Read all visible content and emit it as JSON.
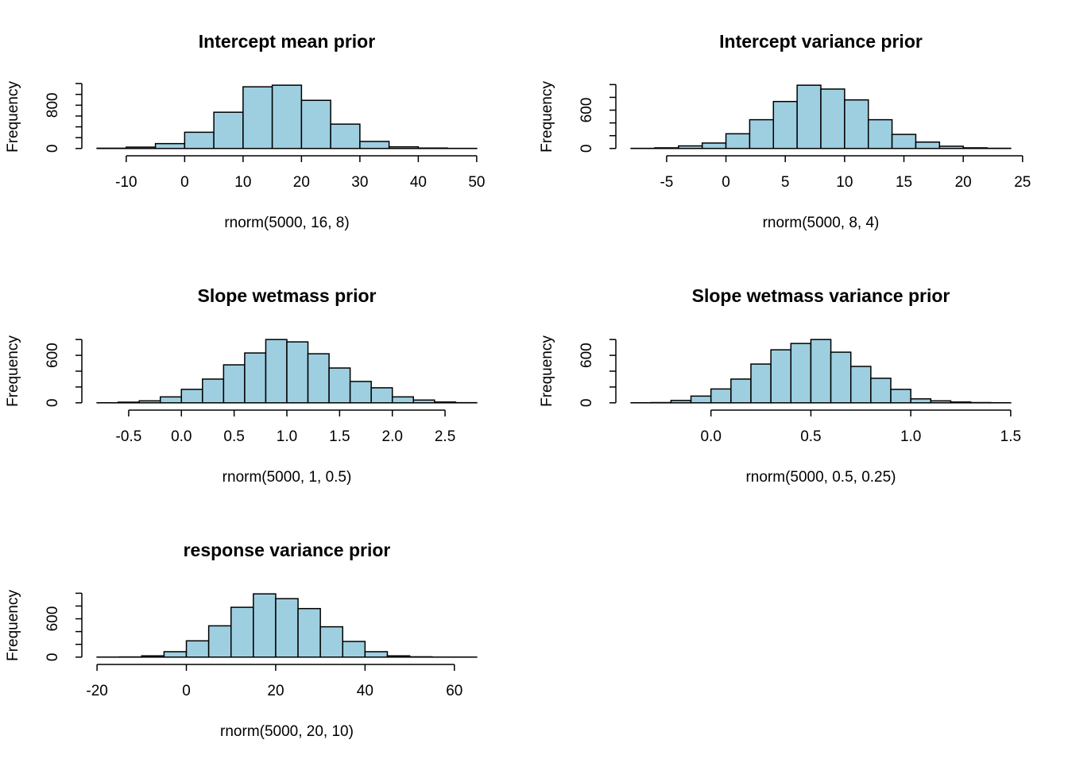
{
  "chart_data": [
    {
      "type": "histogram",
      "title": "Intercept mean prior",
      "xlabel": "rnorm(5000, 16, 8)",
      "ylabel": "Frequency",
      "color": "#9ecfe1",
      "bins": [
        -15,
        -10,
        -5,
        0,
        5,
        10,
        15,
        20,
        25,
        30,
        35,
        40,
        45,
        50
      ],
      "values": [
        5,
        25,
        90,
        300,
        670,
        1140,
        1170,
        890,
        450,
        130,
        30,
        8,
        2
      ],
      "xlim": [
        -17.6,
        52.6
      ],
      "ylim": [
        -47,
        1217
      ],
      "xticks": [
        -10,
        0,
        10,
        20,
        30,
        40,
        50
      ],
      "yticks": [
        0,
        800
      ],
      "ytick_marks": [
        0,
        200,
        400,
        600,
        800,
        1000,
        1200
      ]
    },
    {
      "type": "histogram",
      "title": "Intercept variance prior",
      "xlabel": "rnorm(5000, 8, 4)",
      "ylabel": "Frequency",
      "color": "#9ecfe1",
      "bins": [
        -8,
        -6,
        -4,
        -2,
        0,
        2,
        4,
        6,
        8,
        10,
        12,
        14,
        16,
        18,
        20,
        22,
        24
      ],
      "values": [
        2,
        10,
        40,
        85,
        230,
        450,
        735,
        990,
        930,
        760,
        450,
        220,
        100,
        35,
        10,
        3
      ],
      "xlim": [
        -9.28,
        25.28
      ],
      "ylim": [
        -40,
        1030
      ],
      "xticks": [
        -5,
        0,
        5,
        10,
        15,
        20,
        25
      ],
      "yticks": [
        0,
        600
      ],
      "ytick_marks": [
        0,
        200,
        400,
        600,
        800,
        1000
      ]
    },
    {
      "type": "histogram",
      "title": "Slope wetmass prior",
      "xlabel": "rnorm(5000, 1, 0.5)",
      "ylabel": "Frequency",
      "color": "#9ecfe1",
      "bins": [
        -0.8,
        -0.6,
        -0.4,
        -0.2,
        0,
        0.2,
        0.4,
        0.6,
        0.8,
        1.0,
        1.2,
        1.4,
        1.6,
        1.8,
        2.0,
        2.2,
        2.4,
        2.6,
        2.8
      ],
      "values": [
        1,
        8,
        25,
        75,
        170,
        300,
        480,
        630,
        800,
        770,
        620,
        440,
        270,
        190,
        75,
        35,
        10,
        2
      ],
      "xlim": [
        -0.944,
        2.944
      ],
      "ylim": [
        -32,
        832
      ],
      "xticks": [
        -0.5,
        {
          "value": 0,
          "label": "0.0"
        },
        0.5,
        {
          "value": 1,
          "label": "1.0"
        },
        1.5,
        {
          "value": 2,
          "label": "2.0"
        },
        2.5
      ],
      "yticks": [
        0,
        600
      ],
      "ytick_marks": [
        0,
        200,
        400,
        600,
        800
      ]
    },
    {
      "type": "histogram",
      "title": "Slope wetmass variance prior",
      "xlabel": "rnorm(5000, 0.5, 0.25)",
      "ylabel": "Frequency",
      "color": "#9ecfe1",
      "bins": [
        -0.4,
        -0.3,
        -0.2,
        -0.1,
        0,
        0.1,
        0.2,
        0.3,
        0.4,
        0.5,
        0.6,
        0.7,
        0.8,
        0.9,
        1.0,
        1.1,
        1.2,
        1.3,
        1.4,
        1.5
      ],
      "values": [
        1,
        3,
        30,
        85,
        175,
        300,
        490,
        670,
        750,
        800,
        640,
        460,
        310,
        170,
        50,
        25,
        10,
        3,
        1
      ],
      "xlim": [
        -0.476,
        1.576
      ],
      "ylim": [
        -32,
        832
      ],
      "xticks": [
        {
          "value": 0,
          "label": "0.0"
        },
        0.5,
        {
          "value": 1,
          "label": "1.0"
        },
        1.5
      ],
      "yticks": [
        0,
        600
      ],
      "ytick_marks": [
        0,
        200,
        400,
        600,
        800
      ]
    },
    {
      "type": "histogram",
      "title": "response variance prior",
      "xlabel": "rnorm(5000, 20, 10)",
      "ylabel": "Frequency",
      "color": "#9ecfe1",
      "bins": [
        -20,
        -15,
        -10,
        -5,
        0,
        5,
        10,
        15,
        20,
        25,
        30,
        35,
        40,
        45,
        50,
        55,
        60,
        65
      ],
      "values": [
        1,
        3,
        20,
        85,
        255,
        490,
        780,
        990,
        915,
        760,
        475,
        245,
        85,
        20,
        5,
        1,
        1
      ],
      "xlim": [
        -23.4,
        68.4
      ],
      "ylim": [
        -40,
        1030
      ],
      "xticks": [
        -20,
        0,
        20,
        40,
        60
      ],
      "yticks": [
        0,
        600
      ],
      "ytick_marks": [
        0,
        200,
        400,
        600,
        800,
        1000
      ]
    }
  ]
}
